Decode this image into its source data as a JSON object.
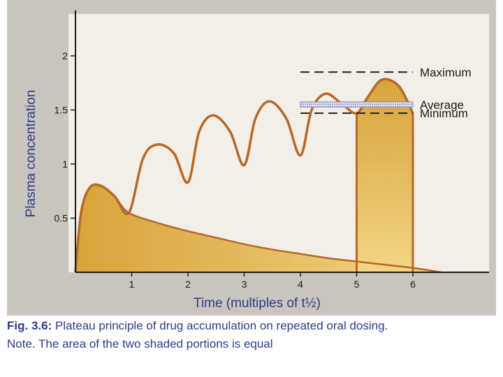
{
  "chart_data": {
    "type": "line",
    "xlabel": "Time (multiples of t½)",
    "ylabel": "Plasma concentration",
    "xlim": [
      0,
      6.5
    ],
    "ylim": [
      0,
      2.2
    ],
    "xticks": [
      1,
      2,
      3,
      4,
      5,
      6
    ],
    "yticks": [
      0.5,
      1,
      1.5,
      2
    ],
    "grid": false,
    "repeated_dosing_curve": {
      "x": [
        0,
        0.1,
        0.25,
        0.45,
        0.7,
        0.95,
        1.2,
        1.45,
        1.75,
        2.0,
        2.2,
        2.45,
        2.75,
        3.0,
        3.2,
        3.45,
        3.75,
        4.0,
        4.2,
        4.45,
        4.75,
        5.0,
        5.2,
        5.45,
        5.75,
        6.0
      ],
      "y": [
        0,
        0.55,
        0.78,
        0.8,
        0.7,
        0.55,
        1.05,
        1.18,
        1.1,
        0.83,
        1.3,
        1.45,
        1.3,
        0.99,
        1.42,
        1.58,
        1.42,
        1.08,
        1.5,
        1.65,
        1.55,
        1.47,
        1.62,
        1.78,
        1.72,
        1.47
      ]
    },
    "single_dose_curve": {
      "x": [
        0,
        0.1,
        0.25,
        0.45,
        0.7,
        0.95,
        1.5,
        2,
        2.5,
        3,
        3.5,
        4,
        4.5,
        5,
        5.5,
        6,
        6.5
      ],
      "y": [
        0,
        0.55,
        0.78,
        0.8,
        0.7,
        0.55,
        0.45,
        0.38,
        0.32,
        0.26,
        0.21,
        0.17,
        0.13,
        0.1,
        0.07,
        0.04,
        0
      ]
    },
    "shaded_block": {
      "x": [
        5,
        6
      ]
    },
    "reference_lines": [
      {
        "label": "Maximum",
        "y": 1.85,
        "x": [
          4.0,
          6.0
        ],
        "style": "dashed"
      },
      {
        "label": "Average",
        "y": 1.55,
        "x": [
          4.0,
          6.0
        ],
        "style": "hatched"
      },
      {
        "label": "Minimum",
        "y": 1.47,
        "x": [
          4.0,
          6.0
        ],
        "style": "dashed"
      }
    ],
    "colors": {
      "curve": "#b5682a",
      "fill_light": "#f2d586",
      "fill_dark": "#d8a33a",
      "plot_bg": "#f3eee6",
      "axis": "#1c1c1c",
      "text_blue": "#2e3c8a"
    }
  },
  "caption": {
    "fig_no": "Fig. 3.6:",
    "text": " Plateau principle of drug accumulation on repeated oral dosing.",
    "note": "Note. The area of the two shaded portions is equal"
  }
}
